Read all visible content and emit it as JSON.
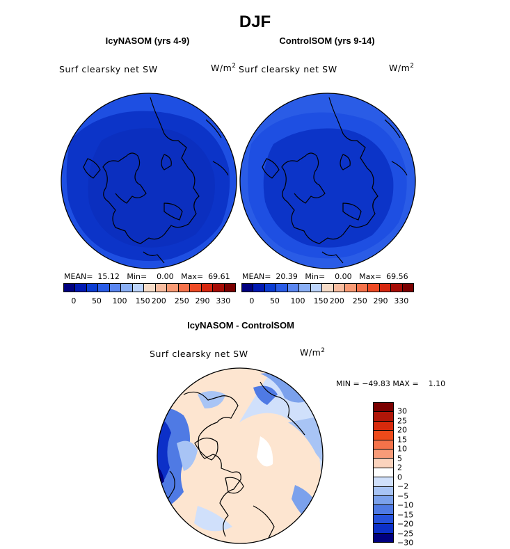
{
  "title": "DJF",
  "panels": [
    {
      "title": "IcyNASOM (yrs 4-9)",
      "variable": "Surf clearsky net SW",
      "units_base": "W/m",
      "units_exp": "2",
      "mean_label": "MEAN=",
      "mean": "15.12",
      "min_label": "Min=",
      "min": "0.00",
      "max_label": "Max=",
      "max": "69.61",
      "colorbar_ticks": [
        "0",
        "50",
        "100",
        "150",
        "200",
        "250",
        "290",
        "330"
      ]
    },
    {
      "title": "ControlSOM (yrs 9-14)",
      "variable": "Surf clearsky net SW",
      "units_base": "W/m",
      "units_exp": "2",
      "mean_label": "MEAN=",
      "mean": "20.39",
      "min_label": "Min=",
      "min": "0.00",
      "max_label": "Max=",
      "max": "69.56",
      "colorbar_ticks": [
        "0",
        "50",
        "100",
        "150",
        "200",
        "250",
        "290",
        "330"
      ]
    }
  ],
  "diff": {
    "title": "IcyNASOM - ControlSOM",
    "variable": "Surf clearsky net SW",
    "units_base": "W/m",
    "units_exp": "2",
    "min_label": "MIN =",
    "min": "−49.83",
    "max_label": "MAX =",
    "max": "1.10",
    "colorbar_ticks": [
      "30",
      "25",
      "20",
      "15",
      "10",
      "5",
      "2",
      "0",
      "−2",
      "−5",
      "−10",
      "−15",
      "−20",
      "−25",
      "−30"
    ]
  },
  "colors": {
    "abs_scale": [
      "#00007f",
      "#0019b2",
      "#0a3cd2",
      "#2a5ce6",
      "#5a86f0",
      "#8aaff5",
      "#bcd4fb",
      "#f6dcc8",
      "#f9bda0",
      "#f99a74",
      "#f5724a",
      "#ee4a24",
      "#d6270f",
      "#a60c05",
      "#7a0000"
    ],
    "diff_scale": [
      "#7a0000",
      "#b01608",
      "#d82a0c",
      "#ee4a1a",
      "#f5734a",
      "#f89b78",
      "#fbd3bd",
      "#ffffff",
      "#d0e0fb",
      "#a8c4f5",
      "#7ba1ec",
      "#4f7ae4",
      "#2652dc",
      "#0c30c8",
      "#00007f"
    ]
  },
  "chart_data": [
    {
      "type": "heatmap",
      "projection": "polar stereographic (north)",
      "title": "IcyNASOM (yrs 4-9)",
      "variable": "Surf clearsky net SW",
      "units": "W/m2",
      "mean": 15.12,
      "min": 0.0,
      "max": 69.61,
      "colorbar_levels": [
        0,
        50,
        100,
        150,
        200,
        250,
        290,
        330
      ]
    },
    {
      "type": "heatmap",
      "projection": "polar stereographic (north)",
      "title": "ControlSOM (yrs 9-14)",
      "variable": "Surf clearsky net SW",
      "units": "W/m2",
      "mean": 20.39,
      "min": 0.0,
      "max": 69.56,
      "colorbar_levels": [
        0,
        50,
        100,
        150,
        200,
        250,
        290,
        330
      ]
    },
    {
      "type": "heatmap",
      "projection": "polar stereographic (north)",
      "title": "IcyNASOM - ControlSOM",
      "variable": "Surf clearsky net SW",
      "units": "W/m2",
      "min": -49.83,
      "max": 1.1,
      "colorbar_levels": [
        30,
        25,
        20,
        15,
        10,
        5,
        2,
        0,
        -2,
        -5,
        -10,
        -15,
        -20,
        -25,
        -30
      ]
    }
  ]
}
